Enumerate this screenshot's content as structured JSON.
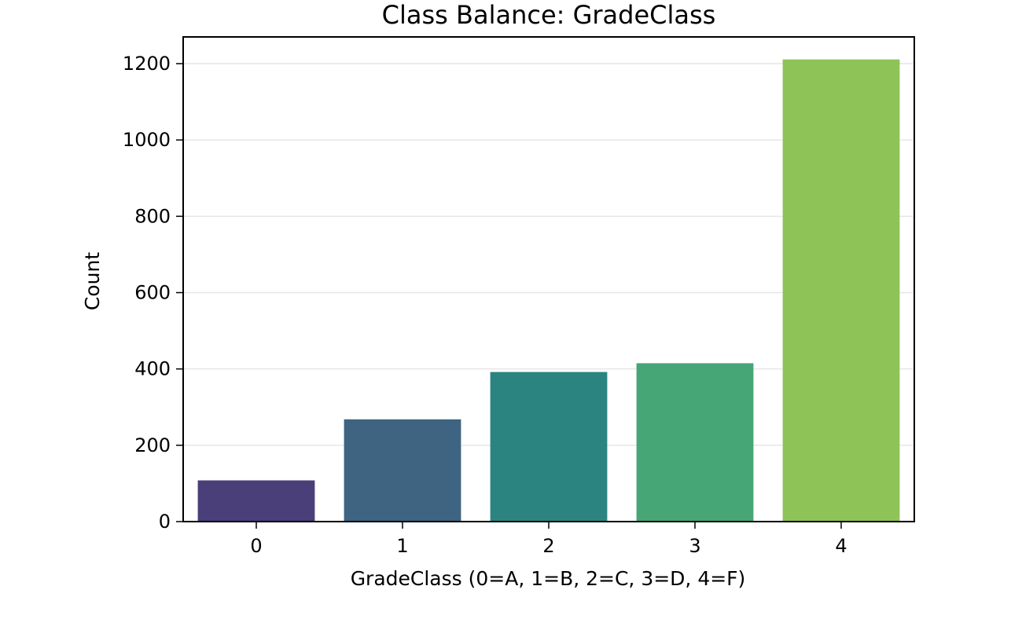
{
  "chart_data": {
    "type": "bar",
    "title": "Class Balance: GradeClass",
    "xlabel": "GradeClass (0=A, 1=B, 2=C, 3=D, 4=F)",
    "ylabel": "Count",
    "categories": [
      "0",
      "1",
      "2",
      "3",
      "4"
    ],
    "values": [
      108,
      268,
      392,
      415,
      1211
    ],
    "colors": [
      "#4a3f79",
      "#3e6482",
      "#2c8480",
      "#47a676",
      "#8ec357"
    ],
    "ylim": [
      0,
      1270
    ],
    "yticks": [
      0,
      200,
      400,
      600,
      800,
      1000,
      1200
    ],
    "grid": "horizontal",
    "legend": "none"
  }
}
